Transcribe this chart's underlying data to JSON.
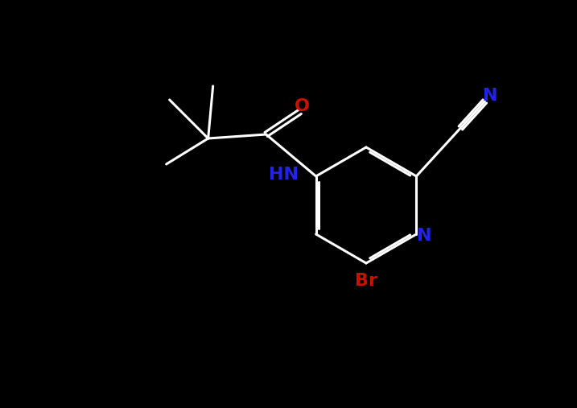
{
  "background_color": "#000000",
  "white": "#ffffff",
  "blue": "#2222ee",
  "red": "#cc1100",
  "bond_lw": 2.2,
  "figsize": [
    7.17,
    5.07
  ],
  "dpi": 100,
  "xlim": [
    0,
    7.17
  ],
  "ylim": [
    0,
    5.07
  ]
}
